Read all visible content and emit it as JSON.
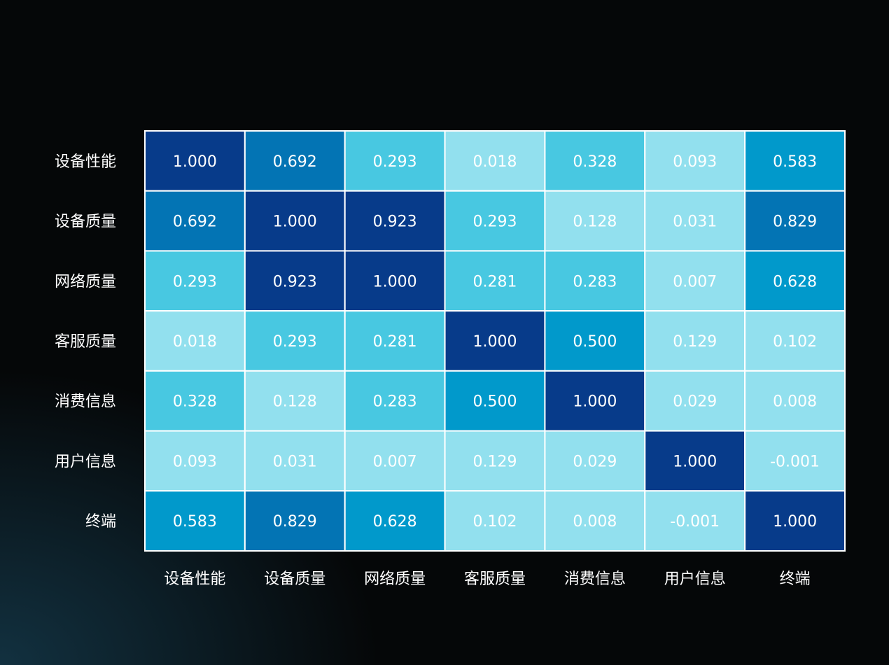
{
  "chart_data": {
    "type": "heatmap",
    "title": "",
    "xlabel": "",
    "ylabel": "",
    "rows": [
      "设备性能",
      "设备质量",
      "网络质量",
      "客服质量",
      "消费信息",
      "用户信息",
      "终端"
    ],
    "columns": [
      "设备性能",
      "设备质量",
      "网络质量",
      "客服质量",
      "消费信息",
      "用户信息",
      "终端"
    ],
    "values": [
      [
        1.0,
        0.692,
        0.293,
        0.018,
        0.328,
        0.093,
        0.583
      ],
      [
        0.692,
        1.0,
        0.923,
        0.293,
        0.128,
        0.031,
        0.829
      ],
      [
        0.293,
        0.923,
        1.0,
        0.281,
        0.283,
        0.007,
        0.628
      ],
      [
        0.018,
        0.293,
        0.281,
        1.0,
        0.5,
        0.129,
        0.102
      ],
      [
        0.328,
        0.128,
        0.283,
        0.5,
        1.0,
        0.029,
        0.008
      ],
      [
        0.093,
        0.031,
        0.007,
        0.129,
        0.029,
        1.0,
        -0.001
      ],
      [
        0.583,
        0.829,
        0.628,
        0.102,
        0.008,
        -0.001,
        1.0
      ]
    ],
    "value_labels": [
      [
        "1.000",
        "0.692",
        "0.293",
        "0.018",
        "0.328",
        "0.093",
        "0.583"
      ],
      [
        "0.692",
        "1.000",
        "0.923",
        "0.293",
        "0.128",
        "0.031",
        "0.829"
      ],
      [
        "0.293",
        "0.923",
        "1.000",
        "0.281",
        "0.283",
        "0.007",
        "0.628"
      ],
      [
        "0.018",
        "0.293",
        "0.281",
        "1.000",
        "0.500",
        "0.129",
        "0.102"
      ],
      [
        "0.328",
        "0.128",
        "0.283",
        "0.500",
        "1.000",
        "0.029",
        "0.008"
      ],
      [
        "0.093",
        "0.031",
        "0.007",
        "0.129",
        "0.029",
        "1.000",
        "-0.001"
      ],
      [
        "0.583",
        "0.829",
        "0.628",
        "0.102",
        "0.008",
        "-0.001",
        "1.000"
      ]
    ],
    "color_scale": [
      {
        "min": 0.9,
        "color": "#073b8a"
      },
      {
        "min": 0.65,
        "color": "#0374b4"
      },
      {
        "min": 0.45,
        "color": "#0199cb"
      },
      {
        "min": 0.2,
        "color": "#48c8e1"
      },
      {
        "min": -1,
        "color": "#92e0ee"
      }
    ],
    "text_color": "#ffffff",
    "cell_border_color": "#ffffff",
    "legend": "none"
  }
}
